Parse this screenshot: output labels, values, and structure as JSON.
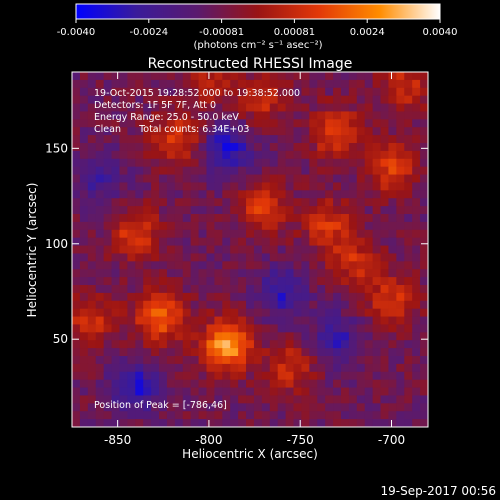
{
  "colorbar": {
    "tick_labels": [
      "-0.0040",
      "-0.0024",
      "-0.00081",
      "0.00081",
      "0.0024",
      "0.0040"
    ],
    "units": "(photons cm⁻² s⁻¹ asec⁻²)",
    "colors": [
      "#0000ff",
      "#3a1b9a",
      "#5a1a6e",
      "#9a1414",
      "#e23808",
      "#ff8c00",
      "#ffffff"
    ]
  },
  "chart_data": {
    "type": "heatmap",
    "title": "Reconstructed RHESSI Image",
    "xlabel": "Heliocentric X (arcsec)",
    "ylabel": "Heliocentric Y (arcsec)",
    "xlim": [
      -875,
      -680
    ],
    "ylim": [
      4,
      190
    ],
    "x_ticks": [
      -850,
      -800,
      -750,
      -700
    ],
    "y_ticks": [
      50,
      100,
      150
    ],
    "annotations": [
      "19-Oct-2015 19:28:52.000 to 19:38:52.000",
      "Detectors: 1F 5F 7F, Att 0",
      "Energy Range: 25.0 - 50.0 keV",
      "Clean      Total counts: 6.34E+03"
    ],
    "peak_label": "Position of Peak = [-786,46]",
    "peak": [
      -786,
      46
    ],
    "sources": [
      {
        "x": -790,
        "y": 47,
        "value": 0.004
      },
      {
        "x": -827,
        "y": 62,
        "value": 0.003
      },
      {
        "x": -770,
        "y": 118,
        "value": 0.0022
      },
      {
        "x": -735,
        "y": 110,
        "value": 0.002
      },
      {
        "x": -818,
        "y": 155,
        "value": 0.0022
      },
      {
        "x": -840,
        "y": 105,
        "value": 0.0022
      },
      {
        "x": -730,
        "y": 158,
        "value": 0.0024
      },
      {
        "x": -700,
        "y": 140,
        "value": 0.0022
      },
      {
        "x": -720,
        "y": 90,
        "value": 0.0018
      },
      {
        "x": -755,
        "y": 35,
        "value": 0.0018
      },
      {
        "x": -700,
        "y": 70,
        "value": 0.002
      },
      {
        "x": -865,
        "y": 60,
        "value": 0.0018
      },
      {
        "x": -800,
        "y": 185,
        "value": 0.0015
      },
      {
        "x": -693,
        "y": 183,
        "value": 0.0018
      },
      {
        "x": -770,
        "y": 175,
        "value": 0.0016
      },
      {
        "x": -790,
        "y": 150,
        "value": -0.0024
      },
      {
        "x": -760,
        "y": 75,
        "value": -0.002
      },
      {
        "x": -840,
        "y": 25,
        "value": -0.0022
      },
      {
        "x": -730,
        "y": 50,
        "value": -0.0018
      },
      {
        "x": -860,
        "y": 135,
        "value": -0.0016
      }
    ]
  },
  "footer": {
    "date": "19-Sep-2017 00:56"
  }
}
